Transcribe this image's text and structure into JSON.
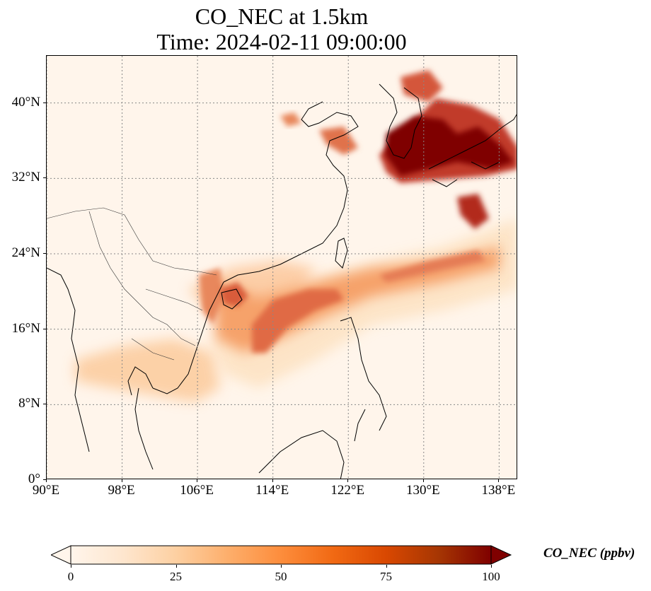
{
  "title": {
    "line1": "CO_NEC at 1.5km",
    "line2": "Time: 2024-02-11 09:00:00"
  },
  "map": {
    "extent": {
      "lon_min": 90,
      "lon_max": 140,
      "lat_min": 0,
      "lat_max": 45
    },
    "projection": "PlateCarree",
    "gridlines": "dotted gray",
    "lon_ticks": [
      {
        "value": 90,
        "label": "90°E"
      },
      {
        "value": 98,
        "label": "98°E"
      },
      {
        "value": 106,
        "label": "106°E"
      },
      {
        "value": 114,
        "label": "114°E"
      },
      {
        "value": 122,
        "label": "122°E"
      },
      {
        "value": 130,
        "label": "130°E"
      },
      {
        "value": 138,
        "label": "138°E"
      }
    ],
    "lat_ticks": [
      {
        "value": 0,
        "label": "0°"
      },
      {
        "value": 8,
        "label": "8°N"
      },
      {
        "value": 16,
        "label": "16°N"
      },
      {
        "value": 24,
        "label": "24°N"
      },
      {
        "value": 32,
        "label": "32°N"
      },
      {
        "value": 40,
        "label": "40°N"
      }
    ],
    "colormap": "OrRd",
    "field_hotspots": [
      {
        "lon": 129.5,
        "lat": 36.0,
        "value": 100
      },
      {
        "lon": 133.0,
        "lat": 35.5,
        "value": 100
      },
      {
        "lon": 136.5,
        "lat": 34.5,
        "value": 95
      },
      {
        "lon": 128.0,
        "lat": 33.5,
        "value": 100
      },
      {
        "lon": 134.5,
        "lat": 29.0,
        "value": 85
      },
      {
        "lon": 112.0,
        "lat": 18.0,
        "value": 70
      },
      {
        "lon": 113.5,
        "lat": 16.0,
        "value": 65
      },
      {
        "lon": 108.5,
        "lat": 19.0,
        "value": 60
      },
      {
        "lon": 116.5,
        "lat": 20.0,
        "value": 55
      },
      {
        "lon": 126.5,
        "lat": 23.0,
        "value": 55
      },
      {
        "lon": 123.0,
        "lat": 37.0,
        "value": 60
      },
      {
        "lon": 98.0,
        "lat": 12.5,
        "value": 30
      },
      {
        "lon": 104.0,
        "lat": 14.0,
        "value": 30
      }
    ]
  },
  "colorbar": {
    "label": "CO_NEC (ppbv)",
    "min": 0,
    "max": 100,
    "extend": "both",
    "stops": [
      "#fff5eb",
      "#fee6ce",
      "#fdd0a2",
      "#fdae6b",
      "#fd8d3c",
      "#f16913",
      "#d94801",
      "#a63603",
      "#7f0000"
    ],
    "ticks": [
      {
        "value": 0,
        "label": "0"
      },
      {
        "value": 25,
        "label": "25"
      },
      {
        "value": 50,
        "label": "50"
      },
      {
        "value": 75,
        "label": "75"
      },
      {
        "value": 100,
        "label": "100"
      }
    ]
  }
}
